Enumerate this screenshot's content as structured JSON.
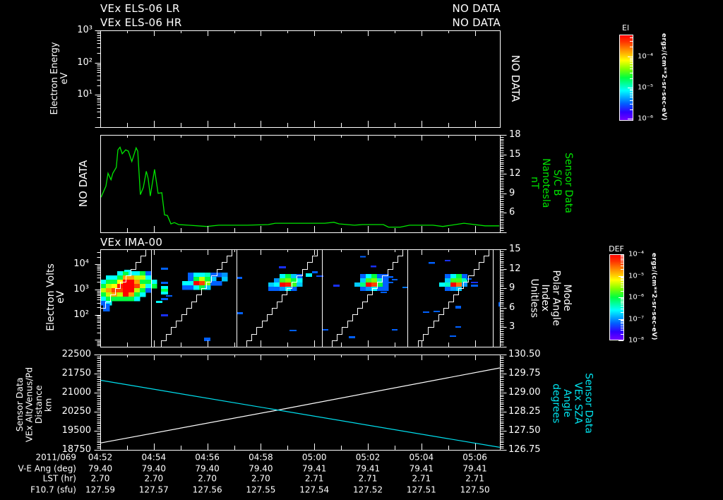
{
  "time_axis": {
    "date": "2011/069",
    "start": "04:52",
    "span_minutes": 14.93,
    "major_tick_minutes": 2,
    "minor_tick_minutes": 1
  },
  "colormap": [
    [
      0,
      "#7a00ff"
    ],
    [
      0.1,
      "#3000ff"
    ],
    [
      0.2,
      "#0060ff"
    ],
    [
      0.35,
      "#00ffff"
    ],
    [
      0.5,
      "#00ff40"
    ],
    [
      0.6,
      "#80ff00"
    ],
    [
      0.7,
      "#ffff00"
    ],
    [
      0.82,
      "#ff9000"
    ],
    [
      0.92,
      "#ff3000"
    ],
    [
      1,
      "#ff0000"
    ]
  ],
  "time_table": {
    "row_labels": [
      "2011/069",
      "V-E Ang (deg)",
      "LST (hr)",
      "F10.7 (sfu)"
    ],
    "columns": [
      {
        "time": "04:52",
        "ve_ang": "79.40",
        "lst": "2.70",
        "f107": "127.59"
      },
      {
        "time": "04:54",
        "ve_ang": "79.40",
        "lst": "2.70",
        "f107": "127.57"
      },
      {
        "time": "04:56",
        "ve_ang": "79.40",
        "lst": "2.70",
        "f107": "127.56"
      },
      {
        "time": "04:58",
        "ve_ang": "79.40",
        "lst": "2.70",
        "f107": "127.55"
      },
      {
        "time": "05:00",
        "ve_ang": "79.41",
        "lst": "2.71",
        "f107": "127.54"
      },
      {
        "time": "05:02",
        "ve_ang": "79.41",
        "lst": "2.71",
        "f107": "127.52"
      },
      {
        "time": "05:04",
        "ve_ang": "79.41",
        "lst": "2.71",
        "f107": "127.51"
      },
      {
        "time": "05:06",
        "ve_ang": "79.41",
        "lst": "2.71",
        "f107": "127.50"
      }
    ]
  },
  "chart_data": [
    {
      "id": "els",
      "type": "heatmap",
      "title": [
        "VEx ELS-06 LR",
        "VEx ELS-06 HR"
      ],
      "status": [
        "NO DATA",
        "NO DATA"
      ],
      "right_status": "NO DATA",
      "ylabel": [
        "Electron Energy",
        "eV"
      ],
      "yscale": "log",
      "ylim": [
        1,
        1000
      ],
      "ylim_log10": [
        0,
        3
      ],
      "yticks": [
        {
          "log10": 3,
          "label": "10³"
        },
        {
          "log10": 2,
          "label": "10²"
        },
        {
          "log10": 1,
          "label": "10¹"
        }
      ],
      "colorbar": {
        "label": "El",
        "units": "ergs/(cm**2-sr-sec-eV)",
        "range_log10": [
          -6.06,
          -3.31
        ],
        "ticks": [
          {
            "log10": -4,
            "label": "10⁻⁴"
          },
          {
            "log10": -5,
            "label": "10⁻⁵"
          },
          {
            "log10": -6,
            "label": "10⁻⁶"
          }
        ]
      },
      "cells": []
    },
    {
      "id": "mag",
      "type": "line",
      "left_status": "NO DATA",
      "ylabel_right": [
        "Sensor Data",
        "S/C B",
        "Nanotesla",
        "nT"
      ],
      "ylim": [
        3,
        18
      ],
      "yticks": [
        18,
        15,
        12,
        9,
        6
      ],
      "color": "#00e600",
      "x_unit": "minutes after 04:52",
      "x": [
        0.03,
        0.21,
        0.29,
        0.4,
        0.47,
        0.6,
        0.66,
        0.74,
        0.82,
        0.95,
        1.05,
        1.18,
        1.34,
        1.4,
        1.5,
        1.61,
        1.72,
        1.79,
        1.87,
        2.03,
        2.16,
        2.3,
        2.4,
        2.51,
        2.64,
        2.77,
        2.93,
        3.3,
        3.98,
        4.43,
        5.49,
        6.28,
        6.54,
        7.81,
        8.39,
        8.73,
        8.92,
        9.5,
        9.79,
        10.58,
        10.77,
        11.21,
        11.56,
        12.43,
        12.8,
        13.59,
        14.38,
        14.91
      ],
      "values": [
        8.4,
        10.1,
        12.1,
        11.1,
        12.1,
        13.0,
        15.7,
        16.1,
        15.1,
        15.7,
        15.5,
        13.9,
        16.0,
        15.5,
        8.8,
        9.9,
        12.4,
        11.3,
        8.6,
        12.7,
        9.0,
        9.1,
        5.7,
        5.6,
        4.3,
        4.5,
        4.2,
        4.1,
        3.9,
        4.1,
        4.1,
        4.2,
        4.4,
        4.4,
        4.4,
        4.55,
        4.3,
        4.1,
        4.2,
        4.2,
        3.8,
        3.8,
        4.1,
        4.1,
        3.9,
        4.4,
        4.0,
        4.0
      ]
    },
    {
      "id": "ima",
      "type": "heatmap",
      "title": "VEx IMA-00",
      "ylabel": [
        "Electron Volts",
        "eV"
      ],
      "yscale": "log",
      "ylim": [
        5.4,
        39800
      ],
      "ylim_log10": [
        0.73,
        4.6
      ],
      "yticks": [
        {
          "log10": 4,
          "label": "10⁴"
        },
        {
          "log10": 3,
          "label": "10³"
        },
        {
          "log10": 2,
          "label": "10²"
        }
      ],
      "ylabel_right": [
        "Mode",
        "Polar Angle",
        "Index",
        "Unitless"
      ],
      "ylim_right": [
        0,
        15
      ],
      "yticks_right": [
        15,
        12,
        9,
        6,
        3
      ],
      "colorbar": {
        "label": "DEF",
        "units": "ergs/(cm**2-sr-sec-eV)",
        "range_log10": [
          -8,
          -4
        ],
        "ticks": [
          {
            "log10": -4,
            "label": "10⁻⁴"
          },
          {
            "log10": -5,
            "label": "10⁻⁵"
          },
          {
            "log10": -6,
            "label": "10⁻⁶"
          },
          {
            "log10": -7,
            "label": "10⁻⁷"
          },
          {
            "log10": -8,
            "label": "10⁻⁸"
          }
        ]
      },
      "bursts": [
        {
          "t0": 0.0,
          "dt": 0.211,
          "logE_top": 3.73,
          "dlog": 0.168,
          "columns": [
            [
              null,
              null,
              0.35,
              0.5,
              0.65,
              0.5,
              0.35,
              0.2
            ],
            [
              null,
              0.35,
              0.5,
              0.65,
              0.8,
              0.65,
              0.5,
              0.35
            ],
            [
              null,
              0.35,
              0.5,
              0.7,
              0.9,
              0.8,
              0.5,
              null
            ],
            [
              0.35,
              0.5,
              0.7,
              0.95,
              0.9,
              0.65,
              0.5,
              null
            ],
            [
              0.5,
              0.8,
              1,
              1,
              1,
              1,
              0.5,
              null
            ],
            [
              0.35,
              0.8,
              1,
              1,
              1,
              0.8,
              0.5,
              null
            ],
            [
              0.35,
              0.65,
              0.8,
              0.9,
              0.65,
              0.5,
              0.35,
              null
            ],
            [
              0.5,
              0.65,
              0.5,
              0.65,
              0.5,
              0.35,
              null,
              null
            ],
            [
              0.2,
              0.35,
              0.5,
              0.35,
              0.2,
              null,
              null,
              null
            ],
            [
              null,
              null,
              0.35,
              0.5,
              null,
              null,
              null,
              null
            ]
          ]
        },
        {
          "t0": 3.06,
          "dt": 0.211,
          "logE_top": 3.67,
          "dlog": 0.168,
          "columns": [
            [
              null,
              null,
              0.35,
              0.2
            ],
            [
              0.2,
              0.2,
              0.35,
              0.2
            ],
            [
              0.35,
              0.5,
              1,
              0.35
            ],
            [
              0.35,
              0.65,
              0.9,
              0.5
            ],
            [
              0.4,
              0.5,
              0.6,
              0.3
            ],
            [
              0.2,
              0.3,
              0.2,
              null
            ],
            [
              0.2,
              null,
              0.2,
              null
            ],
            [
              0.25,
              0.3,
              null,
              null
            ]
          ]
        },
        {
          "t0": 6.28,
          "dt": 0.211,
          "logE_top": 3.62,
          "dlog": 0.168,
          "columns": [
            [
              null,
              null,
              0.3,
              0.2
            ],
            [
              null,
              0.25,
              0.35,
              0.2
            ],
            [
              0.35,
              0.55,
              1,
              0.25
            ],
            [
              0.5,
              0.6,
              0.95,
              0.35
            ],
            [
              0.3,
              0.5,
              0.55,
              0.2
            ],
            [
              0.2,
              0.35,
              0.3,
              null
            ]
          ]
        },
        {
          "t0": 9.5,
          "dt": 0.211,
          "logE_top": 3.62,
          "dlog": 0.168,
          "columns": [
            [
              null,
              null,
              0.3,
              null
            ],
            [
              0.2,
              0.3,
              0.45,
              0.2
            ],
            [
              0.35,
              0.55,
              1,
              0.25
            ],
            [
              0.5,
              0.6,
              0.9,
              0.35
            ],
            [
              0.2,
              0.4,
              0.5,
              0.2
            ],
            [
              0.2,
              0.2,
              0.2,
              0.2
            ]
          ]
        },
        {
          "t0": 12.66,
          "dt": 0.211,
          "logE_top": 3.62,
          "dlog": 0.168,
          "columns": [
            [
              null,
              null,
              0.35,
              null
            ],
            [
              0.2,
              0.3,
              0.4,
              0.2
            ],
            [
              0.35,
              0.55,
              1,
              0.25
            ],
            [
              0.5,
              0.55,
              0.85,
              0.3
            ],
            [
              0.2,
              0.4,
              0.25,
              null
            ]
          ]
        }
      ],
      "scattered_cells_fields": [
        "t_min",
        "log10E_top",
        "dt_min",
        "dlog10E",
        "level"
      ],
      "scattered_cells": [
        [
          2.27,
          3.87,
          0.26,
          0.08,
          0.2
        ],
        [
          2.27,
          3.31,
          0.26,
          0.08,
          0.2
        ],
        [
          2.27,
          3.14,
          0.26,
          0.11,
          0.35
        ],
        [
          2.27,
          3.03,
          0.26,
          0.11,
          0.5
        ],
        [
          2.27,
          2.92,
          0.26,
          0.11,
          0.35
        ],
        [
          2.27,
          2.66,
          0.26,
          0.08,
          0.2
        ],
        [
          2.08,
          2.55,
          0.24,
          0.08,
          0.35
        ],
        [
          2.45,
          2.78,
          0.24,
          0.06,
          0.2
        ],
        [
          2.27,
          2.02,
          0.26,
          0.08,
          0.15
        ],
        [
          3.88,
          1.1,
          0.24,
          0.14,
          0.2
        ],
        [
          5.09,
          3.5,
          0.21,
          0.08,
          0.2
        ],
        [
          5.12,
          2.1,
          0.21,
          0.08,
          0.2
        ],
        [
          6.68,
          3.92,
          0.26,
          0.08,
          0.15
        ],
        [
          7.68,
          3.64,
          0.24,
          0.14,
          0.35
        ],
        [
          7.92,
          3.73,
          0.21,
          0.08,
          0.2
        ],
        [
          8.07,
          3.56,
          0.26,
          0.06,
          0.18
        ],
        [
          7.07,
          1.4,
          0.26,
          0.06,
          0.2
        ],
        [
          8.31,
          1.43,
          0.21,
          0.06,
          0.2
        ],
        [
          8.71,
          3.2,
          0.24,
          0.08,
          0.15
        ],
        [
          9.29,
          1.15,
          0.24,
          0.08,
          0.2
        ],
        [
          9.71,
          4.34,
          0.21,
          0.06,
          0.2
        ],
        [
          10.11,
          3.95,
          0.21,
          0.06,
          0.15
        ],
        [
          10.47,
          2.92,
          0.24,
          0.06,
          0.2
        ],
        [
          10.69,
          3.53,
          0.26,
          0.06,
          0.2
        ],
        [
          10.9,
          3.42,
          0.21,
          0.06,
          0.2
        ],
        [
          10.71,
          3.31,
          0.24,
          0.06,
          0.2
        ],
        [
          10.9,
          1.43,
          0.21,
          0.06,
          0.2
        ],
        [
          11.29,
          3.11,
          0.21,
          0.06,
          0.22
        ],
        [
          12.27,
          4.09,
          0.24,
          0.06,
          0.2
        ],
        [
          12.88,
          4.18,
          0.21,
          0.06,
          0.15
        ],
        [
          12.06,
          2.13,
          0.24,
          0.06,
          0.2
        ],
        [
          12.45,
          2.16,
          0.24,
          0.06,
          0.2
        ],
        [
          13.27,
          2.36,
          0.21,
          0.11,
          0.2
        ],
        [
          13.27,
          1.54,
          0.21,
          0.06,
          0.2
        ],
        [
          13.06,
          1.18,
          0.24,
          0.06,
          0.2
        ],
        [
          13.67,
          3.45,
          0.21,
          0.06,
          0.2
        ],
        [
          13.85,
          3.31,
          0.26,
          0.06,
          0.15
        ],
        [
          13.85,
          3.2,
          0.26,
          0.08,
          0.2
        ],
        [
          0.11,
          2.44,
          0.24,
          0.31,
          0.2
        ],
        [
          0.9,
          3.78,
          0.24,
          0.08,
          0.35
        ],
        [
          14.88,
          2.5,
          0.05,
          0.17,
          0.2
        ]
      ],
      "polar_angle_ramps": [
        {
          "t_start": -1.13,
          "t_end": 1.69
        },
        {
          "t_start": 2.08,
          "t_end": 4.91
        },
        {
          "t_start": 5.28,
          "t_end": 8.1
        },
        {
          "t_start": 8.47,
          "t_end": 11.29
        },
        {
          "t_start": 11.69,
          "t_end": 14.51
        }
      ],
      "mode_transitions_min": [
        1.9,
        5.09,
        8.28,
        11.48,
        14.67
      ]
    },
    {
      "id": "orbit",
      "type": "line",
      "ylabel_left": [
        "Sensor Data",
        "VEx Alt/Venus/Pd",
        "Distance",
        "km"
      ],
      "ylim_left": [
        18750,
        22500
      ],
      "yticks_left": [
        "22500",
        "21750",
        "21000",
        "20250",
        "19500",
        "18750"
      ],
      "ylabel_right": [
        "Sensor Data",
        "VEx SZA",
        "Angle",
        "degrees"
      ],
      "ylim_right": [
        126.75,
        130.5
      ],
      "yticks_right": [
        "130.50",
        "129.75",
        "129.00",
        "128.25",
        "127.50",
        "126.75"
      ],
      "series": [
        {
          "name": "VEx Alt/Venus/Pd Distance (km)",
          "axis": "left",
          "color": "#ffffff",
          "x": [
            0,
            6.5,
            14.93
          ],
          "values": [
            19019,
            20290,
            21972
          ]
        },
        {
          "name": "VEx SZA Angle (degrees)",
          "axis": "right",
          "color": "#00e0f0",
          "x": [
            0,
            14.93
          ],
          "values": [
            129.49,
            126.85
          ]
        }
      ]
    }
  ]
}
